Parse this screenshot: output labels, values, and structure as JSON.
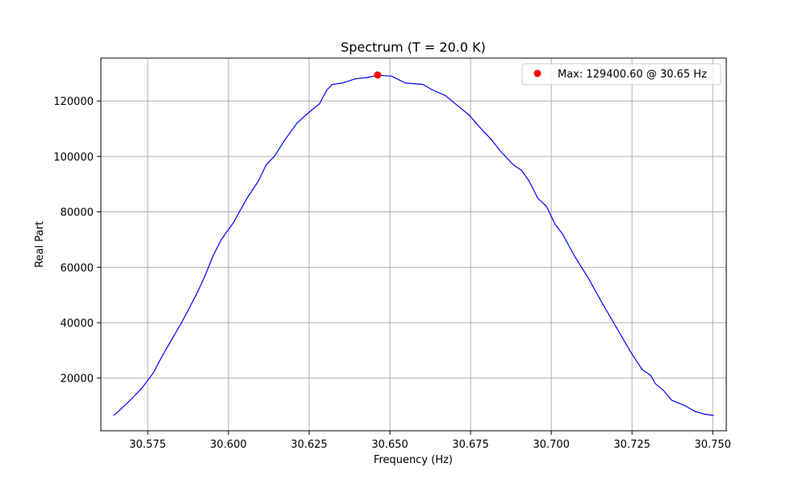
{
  "chart_data": {
    "type": "line",
    "title": "Spectrum (T = 20.0 K)",
    "xlabel": "Frequency (Hz)",
    "ylabel": "Real Part",
    "xlim": [
      30.5605,
      30.7542
    ],
    "ylim": [
      1000,
      135500
    ],
    "grid": true,
    "legend_position": "top-right",
    "x_ticks": [
      30.575,
      30.6,
      30.625,
      30.65,
      30.675,
      30.7,
      30.725,
      30.75
    ],
    "x_tick_labels": [
      "30.575",
      "30.600",
      "30.625",
      "30.650",
      "30.675",
      "30.700",
      "30.725",
      "30.750"
    ],
    "y_ticks": [
      20000,
      40000,
      60000,
      80000,
      100000,
      120000
    ],
    "y_tick_labels": [
      "20000",
      "40000",
      "60000",
      "80000",
      "100000",
      "120000"
    ],
    "series": [
      {
        "color": "#0000ff",
        "x": [
          30.5645,
          30.5673,
          30.57,
          30.5733,
          30.5768,
          30.5795,
          30.582,
          30.5855,
          30.59,
          30.5928,
          30.5952,
          30.5978,
          30.6015,
          30.6058,
          30.6092,
          30.6117,
          30.6142,
          30.6175,
          30.6212,
          30.625,
          30.6282,
          30.6305,
          30.6322,
          30.6353,
          30.6392,
          30.6432,
          30.6462,
          30.6505,
          30.6548,
          30.6602,
          30.6632,
          30.6672,
          30.6713,
          30.6745,
          30.6775,
          30.6815,
          30.6842,
          30.6882,
          30.6908,
          30.6932,
          30.6958,
          30.6985,
          30.7012,
          30.7035,
          30.7072,
          30.7115,
          30.7158,
          30.7198,
          30.7248,
          30.7282,
          30.7308,
          30.7322,
          30.7348,
          30.7373,
          30.7415,
          30.7445,
          30.7475,
          30.7503
        ],
        "y": [
          6500,
          9500,
          12500,
          16500,
          22000,
          28000,
          33000,
          40000,
          50000,
          57000,
          64000,
          70000,
          76000,
          85000,
          91000,
          97000,
          100000,
          106000,
          112000,
          116000,
          119000,
          124000,
          126000,
          126500,
          128000,
          128500,
          129300,
          129000,
          126500,
          126000,
          124000,
          122000,
          118000,
          115000,
          111000,
          106000,
          102000,
          97000,
          95000,
          91000,
          85000,
          82000,
          75500,
          72000,
          64000,
          56000,
          47000,
          39000,
          29000,
          23000,
          21000,
          18000,
          15500,
          12000,
          10000,
          8000,
          7000,
          6500
        ]
      }
    ],
    "max_marker": {
      "x": 30.6462,
      "y": 129400.6,
      "color": "#ff0000",
      "label": "Max: 129400.60 @ 30.65 Hz"
    }
  }
}
